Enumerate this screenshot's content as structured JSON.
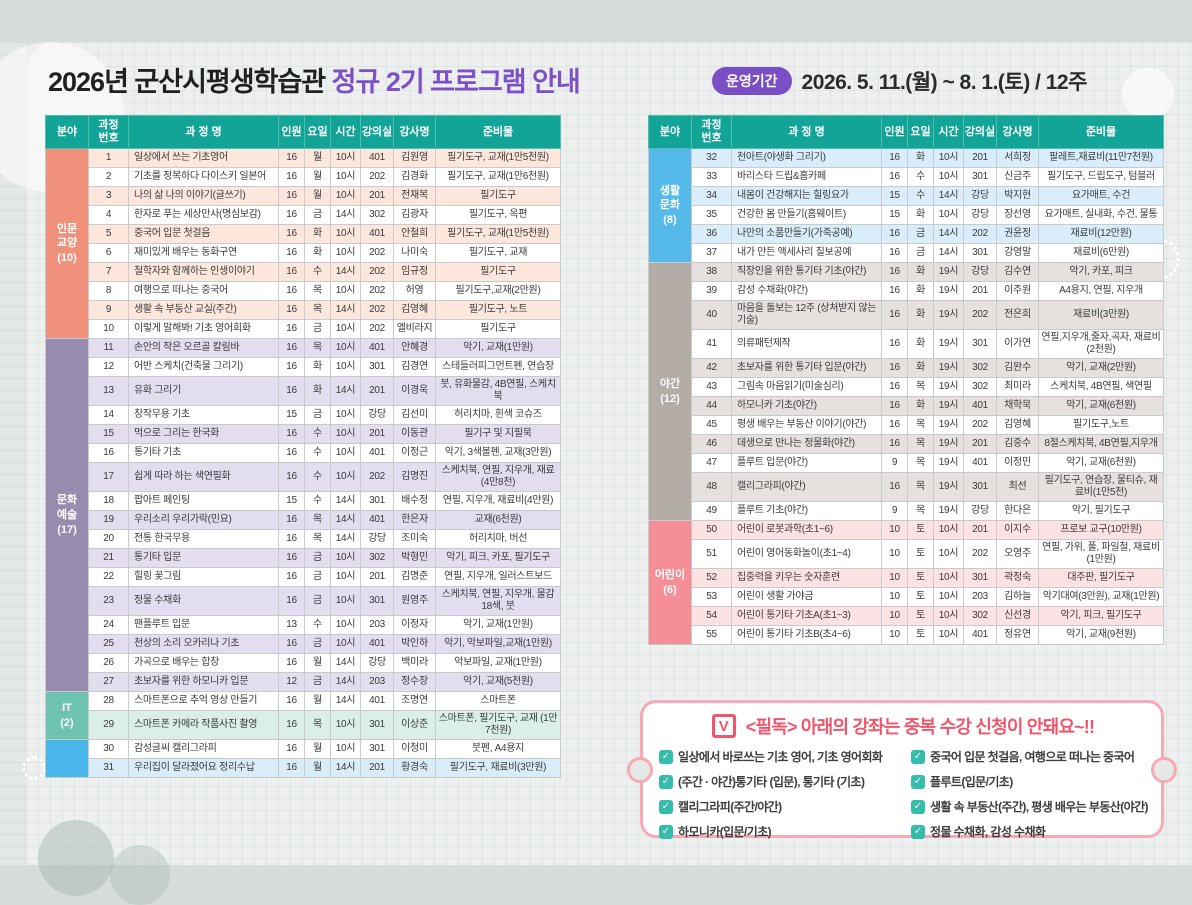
{
  "title": {
    "black": "2026년 군산시평생학습관 ",
    "purple": "정규 2기 프로그램 안내"
  },
  "period": {
    "label": "운영기간",
    "value": "2026. 5. 11.(월) ~ 8. 1.(토) / 12주"
  },
  "table_columns": [
    "분야",
    "과정\n번호",
    "과 정 명",
    "인원",
    "요일",
    "시간",
    "강의실",
    "강사명",
    "준비물"
  ],
  "header_bg": "#12a597",
  "tables": [
    {
      "side": "left",
      "shade_parity": "odd",
      "sections": [
        {
          "label": "인문\n교양\n(10)",
          "color": "#f0917c",
          "shade": "#fde7dc",
          "rows": [
            [
              1,
              "일상에서 쓰는 기초영어",
              16,
              "월",
              "10시",
              "401",
              "김원영",
              "필기도구, 교재(1만5천원)"
            ],
            [
              2,
              "기초를 정복하다 다이스키 일본어",
              16,
              "월",
              "10시",
              "202",
              "김경화",
              "필기도구, 교재(1만6천원)"
            ],
            [
              3,
              "나의 삶 나의 이야기(글쓰기)",
              16,
              "월",
              "10시",
              "201",
              "전재복",
              "필기도구"
            ],
            [
              4,
              "한자로 푸는 세상만사(명심보감)",
              16,
              "금",
              "14시",
              "302",
              "김광자",
              "필기도구, 옥편"
            ],
            [
              5,
              "중국어 입문 첫걸음",
              16,
              "화",
              "10시",
              "401",
              "안철희",
              "필기도구, 교재(1만5천원)"
            ],
            [
              6,
              "재미있게 배우는 동화구연",
              16,
              "화",
              "10시",
              "202",
              "나미숙",
              "필기도구, 교재"
            ],
            [
              7,
              "철학자와 함께하는 인생이야기",
              16,
              "수",
              "14시",
              "202",
              "임규정",
              "필기도구"
            ],
            [
              8,
              "여행으로 떠나는 중국어",
              16,
              "목",
              "10시",
              "202",
              "허영",
              "필기도구,교재(2만원)"
            ],
            [
              9,
              "생활 속 부동산 교실(주간)",
              16,
              "목",
              "14시",
              "202",
              "김영혜",
              "필기도구, 노트"
            ],
            [
              10,
              "이렇게 말해봐! 기초 영어회화",
              16,
              "금",
              "10시",
              "202",
              "엘비라지",
              "필기도구"
            ]
          ]
        },
        {
          "label": "문화\n예술\n(17)",
          "color": "#978cae",
          "shade": "#e3deef",
          "rows": [
            [
              11,
              "손안의 작은 오르골 칼림바",
              16,
              "목",
              "10시",
              "401",
              "안혜경",
              "악기, 교재(1만원)"
            ],
            [
              12,
              "어반 스케치(건축물 그리기)",
              16,
              "화",
              "10시",
              "301",
              "김경연",
              "스테들러피그먼트펜, 연습장"
            ],
            [
              13,
              "유화 그리기",
              16,
              "화",
              "14시",
              "201",
              "이경욱",
              "붓, 유화물감, 4B연필, 스케치북"
            ],
            [
              14,
              "창작무용 기초",
              15,
              "금",
              "10시",
              "강당",
              "김선미",
              "허리치마, 흰색 코슈즈"
            ],
            [
              15,
              "먹으로 그리는 한국화",
              16,
              "수",
              "10시",
              "201",
              "이동관",
              "필기구 및 지필묵"
            ],
            [
              16,
              "통기타 기초",
              16,
              "수",
              "10시",
              "401",
              "이정근",
              "악기, 3색볼펜, 교재(3만원)"
            ],
            [
              17,
              "쉽게 따라 하는 색연필화",
              16,
              "수",
              "10시",
              "202",
              "김명진",
              "스케치북, 연필, 지우개, 재료 (4만8천)"
            ],
            [
              18,
              "팝아트 페인팅",
              15,
              "수",
              "14시",
              "301",
              "배수정",
              "연필, 지우개, 재료비(4만원)"
            ],
            [
              19,
              "우리소리 우리가락(민요)",
              16,
              "목",
              "14시",
              "401",
              "한은자",
              "교재(6천원)"
            ],
            [
              20,
              "전통 한국무용",
              16,
              "목",
              "14시",
              "강당",
              "조미숙",
              "허리치마, 버선"
            ],
            [
              21,
              "통기타 입문",
              16,
              "금",
              "10시",
              "302",
              "박형민",
              "악기, 피크, 카포, 필기도구"
            ],
            [
              22,
              "힐링 꽃그림",
              16,
              "금",
              "10시",
              "201",
              "김명준",
              "연필, 지우개, 일러스트보드"
            ],
            [
              23,
              "정물 수채화",
              16,
              "금",
              "10시",
              "301",
              "원영주",
              "스케치북, 연필, 지우개, 물감18색, 붓"
            ],
            [
              24,
              "팬플루트 입문",
              13,
              "수",
              "10시",
              "203",
              "이정자",
              "악기, 교재(1만원)"
            ],
            [
              25,
              "천상의 소리 오카리나 기초",
              16,
              "금",
              "10시",
              "401",
              "박인하",
              "악기, 악보파일,교재(1만원)"
            ],
            [
              26,
              "가곡으로 배우는 합창",
              16,
              "월",
              "14시",
              "강당",
              "백미라",
              "악보파일, 교재(1만원)"
            ],
            [
              27,
              "초보자를 위한 하모니카 입문",
              12,
              "금",
              "14시",
              "203",
              "정수장",
              "악기, 교재(5천원)"
            ]
          ]
        },
        {
          "label": "IT\n(2)",
          "color": "#6ec3b1",
          "shade": "#daefe8",
          "rows": [
            [
              28,
              "스마트폰으로 추억 영상 만들기",
              16,
              "월",
              "14시",
              "401",
              "조명연",
              "스마트폰"
            ],
            [
              29,
              "스마트폰 카메라 작품사진 촬영",
              16,
              "목",
              "10시",
              "301",
              "이상준",
              "스마트폰, 필기도구, 교재 (1만7천원)"
            ]
          ]
        },
        {
          "label": "",
          "color": "#4ab5e8",
          "shade": "#d9edf8",
          "rows": [
            [
              30,
              "감성글씨 캘리그라피",
              16,
              "월",
              "10시",
              "301",
              "이청미",
              "붓펜, A4용지"
            ],
            [
              31,
              "우리집이 달라졌어요 정리수납",
              16,
              "월",
              "14시",
              "201",
              "황경숙",
              "필기도구, 재료비(3만원)"
            ]
          ]
        }
      ]
    },
    {
      "side": "right",
      "shade_parity": "even",
      "sections": [
        {
          "label": "생활\n문화\n(8)",
          "color": "#55b9e9",
          "shade": "#d9eefa",
          "rows": [
            [
              32,
              "천아트(야생화 그리기)",
              16,
              "화",
              "10시",
              "201",
              "서희정",
              "팔레트,재료비(11만7천원)"
            ],
            [
              33,
              "바리스타 드립&홈카페",
              16,
              "수",
              "10시",
              "301",
              "신금주",
              "필기도구, 드립도구, 텀블러"
            ],
            [
              34,
              "내몸이 건강해지는 힐링요가",
              15,
              "수",
              "14시",
              "강당",
              "박지현",
              "요가매트, 수건"
            ],
            [
              35,
              "건강한 몸 만들기(홈웨이트)",
              15,
              "화",
              "10시",
              "강당",
              "장선영",
              "요가매트, 실내화, 수건, 물통"
            ],
            [
              36,
              "나만의 소품만들기(가죽공예)",
              16,
              "금",
              "14시",
              "202",
              "권윤정",
              "재료비(12만원)"
            ],
            [
              37,
              "내가 만든 액세사리 칠보공예",
              16,
              "금",
              "14시",
              "301",
              "강영말",
              "재료비(6만원)"
            ]
          ]
        },
        {
          "label": "야간\n(12)",
          "color": "#b3aca7",
          "shade": "#e6e1de",
          "rows": [
            [
              38,
              "직장인을 위한 통기타 기초(야간)",
              16,
              "화",
              "19시",
              "강당",
              "김수연",
              "악기, 카포, 피크"
            ],
            [
              39,
              "감성 수채화(야간)",
              16,
              "화",
              "19시",
              "201",
              "이주원",
              "A4용지, 연필, 지우개"
            ],
            [
              40,
              "마음을 돌보는 12주 (상처받지 않는 기술)",
              16,
              "화",
              "19시",
              "202",
              "전은희",
              "재료비(3만원)"
            ],
            [
              41,
              "의류패턴제작",
              16,
              "화",
              "19시",
              "301",
              "이가연",
              "연필,지우개,줄자,곡자, 재료비(2천원)"
            ],
            [
              42,
              "초보자를 위한 통기타 입문(야간)",
              16,
              "화",
              "19시",
              "302",
              "김완수",
              "악기, 교재(2만원)"
            ],
            [
              43,
              "그림속 마음읽기(미술심리)",
              16,
              "목",
              "19시",
              "302",
              "최미라",
              "스케치북, 4B연필, 색연필"
            ],
            [
              44,
              "하모니카 기초(야간)",
              16,
              "화",
              "19시",
              "401",
              "채학묵",
              "악기, 교재(6천원)"
            ],
            [
              45,
              "평생 배우는 부동산 이야기(야간)",
              16,
              "목",
              "19시",
              "202",
              "김영혜",
              "필기도구,노트"
            ],
            [
              46,
              "데생으로 만나는 정물화(야간)",
              16,
              "목",
              "19시",
              "201",
              "김중수",
              "8절스케치북, 4B연필,지우개"
            ],
            [
              47,
              "플루트 입문(야간)",
              9,
              "목",
              "19시",
              "401",
              "이정민",
              "악기, 교재(6천원)"
            ],
            [
              48,
              "캘리그라피(야간)",
              16,
              "목",
              "19시",
              "301",
              "최선",
              "필기도구, 연습장, 물티슈, 재료비(1만5천)"
            ],
            [
              49,
              "플루트 기초(야간)",
              9,
              "목",
              "19시",
              "강당",
              "한다은",
              "악기, 필기도구"
            ]
          ]
        },
        {
          "label": "어린이\n(6)",
          "color": "#f58e97",
          "shade": "#fde2e3",
          "rows": [
            [
              50,
              "어린이 로봇과학(초1~6)",
              10,
              "토",
              "10시",
              "201",
              "이지수",
              "프로보 교구(10만원)"
            ],
            [
              51,
              "어린이 영어동화놀이(초1~4)",
              10,
              "토",
              "10시",
              "202",
              "오영주",
              "연필, 가위, 풀, 파일철, 재료비(1만원)"
            ],
            [
              52,
              "집중력을 키우는 숫자훈련",
              10,
              "토",
              "10시",
              "301",
              "곽정숙",
              "대주판, 필기도구"
            ],
            [
              53,
              "어린이 생활 가야금",
              10,
              "토",
              "10시",
              "203",
              "김하늘",
              "악기대여(3만원), 교재(1만원)"
            ],
            [
              54,
              "어린이 통기타 기초A(초1~3)",
              10,
              "토",
              "10시",
              "302",
              "신선경",
              "악기, 피크, 필기도구"
            ],
            [
              55,
              "어린이 통기타 기초B(초4~6)",
              10,
              "토",
              "10시",
              "401",
              "정유연",
              "악기, 교재(9천원)"
            ]
          ]
        }
      ]
    }
  ],
  "notice": {
    "check_icon": "V",
    "title": "<필독> 아래의 강좌는 중복 수강 신청이 안돼요~!!",
    "accent": "#f0566b",
    "columns": [
      [
        "일상에서 바로쓰는 기초 영어, 기초 영어회화",
        "(주간 · 야간)통기타 (입문), 통기타 (기초)",
        "캘리그라피(주간/야간)",
        "하모니카(입문/기초)"
      ],
      [
        "중국어 입문 첫걸음, 여행으로 떠나는 중국어",
        "플루트(입문/기초)",
        "생활 속 부동산(주간), 평생 배우는 부동산(야간)",
        "정물 수채화, 감성 수채화"
      ]
    ]
  }
}
